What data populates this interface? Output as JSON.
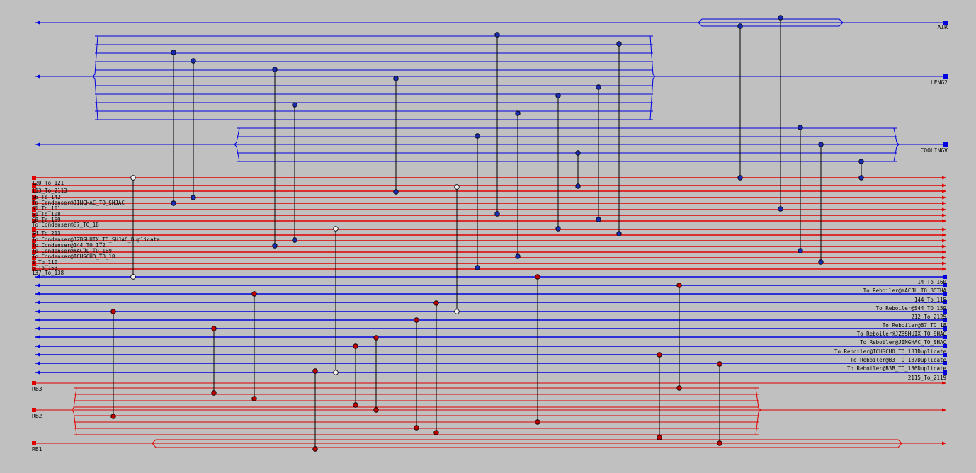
{
  "diagram": {
    "hot_streams": [
      "120_To_121",
      "113_To_2113",
      "S6_To_142",
      "To Condenser@JINGHAC_TO_SHJAC",
      "S1_To_101",
      "S1_To_108",
      "S8_To_169",
      "To Condenser@B7_TO_18",
      "S4_To_213",
      "To Condenser@JZBSHUIX_TO_SHJAC_Duplicate",
      "To Condenser@144_TO_172",
      "To Condenser@YACJL_TO_169",
      "To Condenser@TCHSCHO_TO_18",
      "S_To_110",
      "S_To_153",
      "137_To_138"
    ],
    "cold_streams": [
      "14_To_160",
      "To Reboiler@YACJL_TO_BOTHA",
      "144_To_115",
      "To Reboiler@S44_TO_159",
      "212_To_2125",
      "To Reboiler@B7_TO_18",
      "To Reboiler@JZBSHUIX_TO_SHAC",
      "To Reboiler@JINGHAC_TO_SHAC",
      "To Reboiler@TCHSCHO_TO_131Duplicate",
      "To Reboiler@B3_TO_137Duplicate",
      "To Reboiler@B3B_TO_136Duplicate",
      "2115_To_2119"
    ],
    "utilities": {
      "hot": [
        "AIR",
        "LENG2",
        "COOLINGV"
      ],
      "cold": [
        "RB3",
        "RB2",
        "RB1"
      ]
    }
  }
}
